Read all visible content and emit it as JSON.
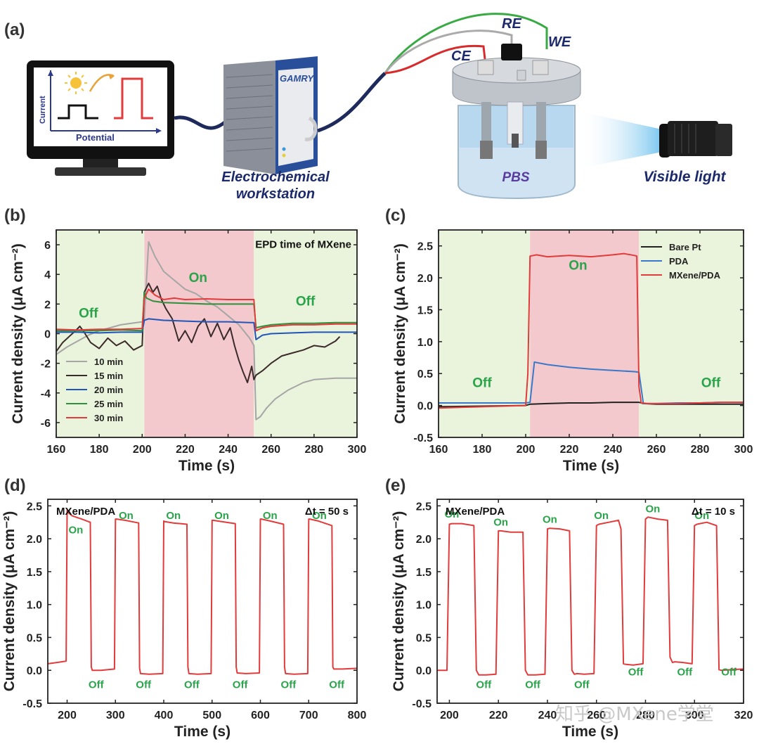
{
  "figure": {
    "panel_letters": [
      "(a)",
      "(b)",
      "(c)",
      "(d)",
      "(e)"
    ],
    "watermark": "知乎 @MXene学堂"
  },
  "scheme": {
    "monitor": {
      "xlabel": "Potential",
      "ylabel": "Current"
    },
    "workstation": {
      "brand": "GAMRY",
      "caption_line1": "Electrochemical",
      "caption_line2": "workstation"
    },
    "electrodes": {
      "ce": "CE",
      "re": "RE",
      "we": "WE"
    },
    "electrolyte": "PBS",
    "light": "Visible light"
  },
  "chart_data": [
    {
      "id": "b",
      "type": "line",
      "xlabel": "Time (s)",
      "ylabel": "Current density (μA cm⁻²)",
      "xlim": [
        160,
        300
      ],
      "ylim": [
        -7,
        7
      ],
      "xticks": [
        160,
        180,
        200,
        220,
        240,
        260,
        280,
        300
      ],
      "yticks": [
        -6,
        -4,
        -2,
        0,
        2,
        4,
        6
      ],
      "shaded_regions": [
        {
          "from": 160,
          "to": 201,
          "color": "#eaf3dc"
        },
        {
          "from": 201,
          "to": 252,
          "color": "#f3c9cd"
        },
        {
          "from": 252,
          "to": 300,
          "color": "#eaf3dc"
        }
      ],
      "annotations": [
        {
          "text": "EPD time of MXene",
          "x": 275,
          "y": 5.8,
          "color": "#111111",
          "size": 15
        },
        {
          "text": "On",
          "x": 226,
          "y": 3.5,
          "color": "#2aa44a",
          "size": 19
        },
        {
          "text": "Off",
          "x": 175,
          "y": 1.1,
          "color": "#2aa44a",
          "size": 19
        },
        {
          "text": "Off",
          "x": 276,
          "y": 1.9,
          "color": "#2aa44a",
          "size": 19
        }
      ],
      "legend": {
        "placement": "lower-left"
      },
      "series": [
        {
          "name": "10 min",
          "color": "#a6a6a6",
          "x": [
            160,
            165,
            170,
            175,
            180,
            185,
            190,
            195,
            200,
            201,
            203,
            206,
            210,
            215,
            220,
            225,
            230,
            235,
            240,
            245,
            250,
            252,
            253,
            255,
            258,
            262,
            268,
            275,
            280,
            290,
            300
          ],
          "y": [
            -1.4,
            -0.9,
            -0.5,
            -0.1,
            0.2,
            0.4,
            0.6,
            0.7,
            0.8,
            1.0,
            6.2,
            5.2,
            4.2,
            3.6,
            3.0,
            2.7,
            2.2,
            1.8,
            1.2,
            0.6,
            -0.3,
            -0.8,
            -5.8,
            -5.6,
            -5.0,
            -4.4,
            -3.8,
            -3.3,
            -3.1,
            -3.0,
            -3.0
          ]
        },
        {
          "name": "15 min",
          "color": "#3a2a2a",
          "x": [
            160,
            163,
            166,
            169,
            171,
            173,
            176,
            180,
            184,
            188,
            192,
            196,
            200,
            201,
            203,
            205,
            207,
            209,
            211,
            214,
            217,
            220,
            223,
            226,
            229,
            232,
            235,
            238,
            241,
            243,
            245,
            247,
            249,
            251,
            252,
            253,
            256,
            260,
            265,
            270,
            275,
            280,
            285,
            290,
            292
          ],
          "y": [
            -1.2,
            -0.6,
            -0.2,
            0.2,
            0.5,
            0.1,
            -0.6,
            -1.0,
            -0.3,
            -0.8,
            -0.5,
            -1.1,
            -0.8,
            2.8,
            3.4,
            2.8,
            3.2,
            2.3,
            1.7,
            1.0,
            -0.5,
            0.2,
            -0.6,
            0.5,
            1.0,
            -0.2,
            0.7,
            -0.4,
            0.4,
            -0.8,
            -1.8,
            -2.6,
            -3.3,
            -2.2,
            -3.1,
            -2.8,
            -2.5,
            -2.0,
            -1.5,
            -1.3,
            -1.1,
            -0.8,
            -0.9,
            -0.5,
            -0.2
          ]
        },
        {
          "name": "20 min",
          "color": "#2255b8",
          "x": [
            160,
            170,
            180,
            190,
            200,
            201,
            203,
            210,
            220,
            230,
            240,
            250,
            252,
            253,
            256,
            260,
            270,
            280,
            290,
            300
          ],
          "y": [
            0.1,
            0.1,
            0.05,
            0.1,
            0.1,
            0.9,
            1.0,
            0.9,
            0.85,
            0.8,
            0.8,
            0.75,
            0.75,
            -0.4,
            -0.1,
            0.0,
            0.05,
            0.1,
            0.1,
            0.1
          ]
        },
        {
          "name": "25 min",
          "color": "#2f8f3c",
          "x": [
            160,
            170,
            180,
            190,
            200,
            201,
            202,
            205,
            210,
            220,
            230,
            240,
            250,
            252,
            253,
            256,
            260,
            270,
            280,
            290,
            300
          ],
          "y": [
            0.2,
            0.2,
            0.2,
            0.25,
            0.2,
            2.8,
            2.4,
            2.2,
            2.1,
            2.05,
            2.0,
            2.0,
            2.0,
            2.0,
            0.4,
            0.5,
            0.6,
            0.7,
            0.7,
            0.75,
            0.75
          ]
        },
        {
          "name": "30 min",
          "color": "#e23b3b",
          "x": [
            160,
            170,
            180,
            190,
            200,
            201,
            203,
            206,
            210,
            215,
            220,
            230,
            240,
            250,
            252,
            253,
            256,
            260,
            270,
            280,
            290,
            300
          ],
          "y": [
            0.3,
            0.25,
            0.3,
            0.3,
            0.35,
            2.4,
            3.0,
            2.6,
            2.3,
            2.4,
            2.3,
            2.35,
            2.3,
            2.3,
            2.3,
            0.2,
            0.4,
            0.5,
            0.6,
            0.6,
            0.65,
            0.65
          ]
        }
      ]
    },
    {
      "id": "c",
      "type": "line",
      "xlabel": "Time (s)",
      "ylabel": "Current density (μA cm⁻²)",
      "xlim": [
        160,
        300
      ],
      "ylim": [
        -0.5,
        2.75
      ],
      "xticks": [
        160,
        180,
        200,
        220,
        240,
        260,
        280,
        300
      ],
      "yticks": [
        -0.5,
        0.0,
        0.5,
        1.0,
        1.5,
        2.0,
        2.5
      ],
      "shaded_regions": [
        {
          "from": 160,
          "to": 202,
          "color": "#eaf3dc"
        },
        {
          "from": 202,
          "to": 252,
          "color": "#f3c9cd"
        },
        {
          "from": 252,
          "to": 300,
          "color": "#eaf3dc"
        }
      ],
      "annotations": [
        {
          "text": "On",
          "x": 224,
          "y": 2.13,
          "color": "#2aa44a",
          "size": 19
        },
        {
          "text": "Off",
          "x": 180,
          "y": 0.29,
          "color": "#2aa44a",
          "size": 19
        },
        {
          "text": "Off",
          "x": 285,
          "y": 0.29,
          "color": "#2aa44a",
          "size": 19
        }
      ],
      "legend": {
        "placement": "top-right"
      },
      "series": [
        {
          "name": "Bare Pt",
          "color": "#222222",
          "x": [
            160,
            180,
            200,
            202,
            210,
            220,
            230,
            240,
            250,
            252,
            254,
            260,
            280,
            300
          ],
          "y": [
            -0.02,
            -0.01,
            0.0,
            0.02,
            0.03,
            0.04,
            0.04,
            0.05,
            0.05,
            0.05,
            0.03,
            0.02,
            0.02,
            0.02
          ]
        },
        {
          "name": "PDA",
          "color": "#3a78c9",
          "x": [
            160,
            180,
            200,
            202,
            204,
            210,
            220,
            230,
            240,
            250,
            252,
            254,
            260,
            270,
            280,
            290,
            300
          ],
          "y": [
            0.04,
            0.04,
            0.04,
            0.05,
            0.68,
            0.64,
            0.6,
            0.57,
            0.55,
            0.53,
            0.52,
            0.03,
            0.03,
            0.04,
            0.04,
            0.05,
            0.05
          ]
        },
        {
          "name": "MXene/PDA",
          "color": "#e23b3b",
          "x": [
            160,
            170,
            180,
            190,
            200,
            201,
            202,
            205,
            210,
            220,
            230,
            240,
            245,
            250,
            251,
            252,
            253,
            256,
            260,
            270,
            280,
            290,
            300
          ],
          "y": [
            -0.04,
            -0.03,
            -0.02,
            -0.01,
            0.0,
            0.5,
            2.34,
            2.36,
            2.33,
            2.35,
            2.33,
            2.36,
            2.38,
            2.35,
            2.34,
            0.3,
            0.04,
            0.03,
            0.03,
            0.03,
            0.04,
            0.05,
            0.05
          ]
        }
      ]
    },
    {
      "id": "d",
      "type": "line",
      "xlabel": "Time (s)",
      "ylabel": "Current density (μA cm⁻²)",
      "xlim": [
        160,
        800
      ],
      "ylim": [
        -0.5,
        2.6
      ],
      "xticks": [
        200,
        300,
        400,
        500,
        600,
        700,
        800
      ],
      "yticks": [
        -0.5,
        0.0,
        0.5,
        1.0,
        1.5,
        2.0,
        2.5
      ],
      "title_left": "MXene/PDA",
      "title_right": "Δt = 50 s",
      "annotations": [
        {
          "text": "On",
          "x": 218,
          "y": 2.08,
          "color": "#2aa44a",
          "size": 15
        },
        {
          "text": "On",
          "x": 322,
          "y": 2.3,
          "color": "#2aa44a",
          "size": 15
        },
        {
          "text": "On",
          "x": 420,
          "y": 2.3,
          "color": "#2aa44a",
          "size": 15
        },
        {
          "text": "On",
          "x": 520,
          "y": 2.3,
          "color": "#2aa44a",
          "size": 15
        },
        {
          "text": "On",
          "x": 620,
          "y": 2.3,
          "color": "#2aa44a",
          "size": 15
        },
        {
          "text": "On",
          "x": 722,
          "y": 2.3,
          "color": "#2aa44a",
          "size": 15
        },
        {
          "text": "Off",
          "x": 260,
          "y": -0.27,
          "color": "#2aa44a",
          "size": 15
        },
        {
          "text": "Off",
          "x": 358,
          "y": -0.27,
          "color": "#2aa44a",
          "size": 15
        },
        {
          "text": "Off",
          "x": 458,
          "y": -0.27,
          "color": "#2aa44a",
          "size": 15
        },
        {
          "text": "Off",
          "x": 558,
          "y": -0.27,
          "color": "#2aa44a",
          "size": 15
        },
        {
          "text": "Off",
          "x": 658,
          "y": -0.27,
          "color": "#2aa44a",
          "size": 15
        },
        {
          "text": "Off",
          "x": 758,
          "y": -0.27,
          "color": "#2aa44a",
          "size": 15
        }
      ],
      "series": [
        {
          "name": "MXene/PDA",
          "color": "#e23b3b",
          "x": [
            160,
            180,
            198,
            200,
            202,
            210,
            230,
            248,
            250,
            252,
            270,
            298,
            300,
            302,
            320,
            348,
            350,
            352,
            370,
            398,
            400,
            402,
            420,
            448,
            450,
            452,
            470,
            498,
            500,
            502,
            520,
            548,
            550,
            552,
            570,
            598,
            600,
            602,
            620,
            648,
            650,
            652,
            670,
            698,
            700,
            702,
            720,
            748,
            750,
            752,
            770,
            800
          ],
          "y": [
            0.1,
            0.12,
            0.14,
            2.43,
            2.4,
            2.35,
            2.3,
            2.25,
            0.05,
            0.0,
            0.0,
            0.02,
            2.3,
            2.3,
            2.28,
            2.24,
            0.03,
            -0.05,
            -0.06,
            -0.05,
            2.27,
            2.26,
            2.24,
            2.22,
            0.05,
            -0.05,
            -0.06,
            -0.05,
            2.28,
            2.28,
            2.26,
            2.23,
            0.05,
            -0.04,
            -0.05,
            -0.04,
            2.3,
            2.3,
            2.27,
            2.22,
            0.05,
            -0.05,
            -0.06,
            -0.05,
            2.3,
            2.3,
            2.27,
            2.2,
            0.05,
            0.02,
            0.02,
            0.03
          ]
        }
      ]
    },
    {
      "id": "e",
      "type": "line",
      "xlabel": "Time (s)",
      "ylabel": "Current density (μA cm⁻²)",
      "xlim": [
        195,
        320
      ],
      "ylim": [
        -0.5,
        2.6
      ],
      "xticks": [
        200,
        220,
        240,
        260,
        280,
        300,
        320
      ],
      "yticks": [
        -0.5,
        0.0,
        0.5,
        1.0,
        1.5,
        2.0,
        2.5
      ],
      "title_left": "MXene/PDA",
      "title_right": "Δt = 10 s",
      "annotations": [
        {
          "text": "On",
          "x": 201,
          "y": 2.32,
          "color": "#2aa44a",
          "size": 15
        },
        {
          "text": "On",
          "x": 221,
          "y": 2.2,
          "color": "#2aa44a",
          "size": 15
        },
        {
          "text": "On",
          "x": 241,
          "y": 2.24,
          "color": "#2aa44a",
          "size": 15
        },
        {
          "text": "On",
          "x": 262,
          "y": 2.3,
          "color": "#2aa44a",
          "size": 15
        },
        {
          "text": "On",
          "x": 283,
          "y": 2.4,
          "color": "#2aa44a",
          "size": 15
        },
        {
          "text": "On",
          "x": 303,
          "y": 2.3,
          "color": "#2aa44a",
          "size": 15
        },
        {
          "text": "Off",
          "x": 214,
          "y": -0.27,
          "color": "#2aa44a",
          "size": 15
        },
        {
          "text": "Off",
          "x": 234,
          "y": -0.27,
          "color": "#2aa44a",
          "size": 15
        },
        {
          "text": "Off",
          "x": 254,
          "y": -0.27,
          "color": "#2aa44a",
          "size": 15
        },
        {
          "text": "Off",
          "x": 276,
          "y": -0.08,
          "color": "#2aa44a",
          "size": 15
        },
        {
          "text": "Off",
          "x": 296,
          "y": -0.08,
          "color": "#2aa44a",
          "size": 15
        },
        {
          "text": "Off",
          "x": 314,
          "y": -0.08,
          "color": "#2aa44a",
          "size": 15
        }
      ],
      "series": [
        {
          "name": "MXene/PDA",
          "color": "#e23b3b",
          "x": [
            195,
            199,
            200,
            201,
            205,
            210,
            211,
            212,
            215,
            219,
            220,
            221,
            225,
            230,
            231,
            232,
            235,
            239,
            240,
            241,
            245,
            249,
            250,
            251,
            252,
            255,
            259,
            260,
            261,
            265,
            269,
            270,
            271,
            272,
            275,
            279,
            280,
            281,
            285,
            289,
            290,
            291,
            292,
            295,
            299,
            300,
            301,
            305,
            309,
            310,
            311,
            315,
            320
          ],
          "y": [
            0.0,
            0.0,
            2.22,
            2.23,
            2.23,
            2.2,
            0.0,
            -0.07,
            -0.07,
            -0.06,
            2.12,
            2.12,
            2.1,
            2.1,
            0.0,
            -0.07,
            -0.07,
            -0.06,
            2.15,
            2.16,
            2.15,
            2.12,
            0.0,
            -0.06,
            -0.05,
            -0.06,
            -0.05,
            2.2,
            2.22,
            2.25,
            2.28,
            2.15,
            0.1,
            0.09,
            0.08,
            0.1,
            2.3,
            2.33,
            2.3,
            2.28,
            0.2,
            0.12,
            0.13,
            0.12,
            0.1,
            2.2,
            2.22,
            2.25,
            2.2,
            0.01,
            0.0,
            0.01,
            0.02
          ]
        }
      ]
    }
  ]
}
